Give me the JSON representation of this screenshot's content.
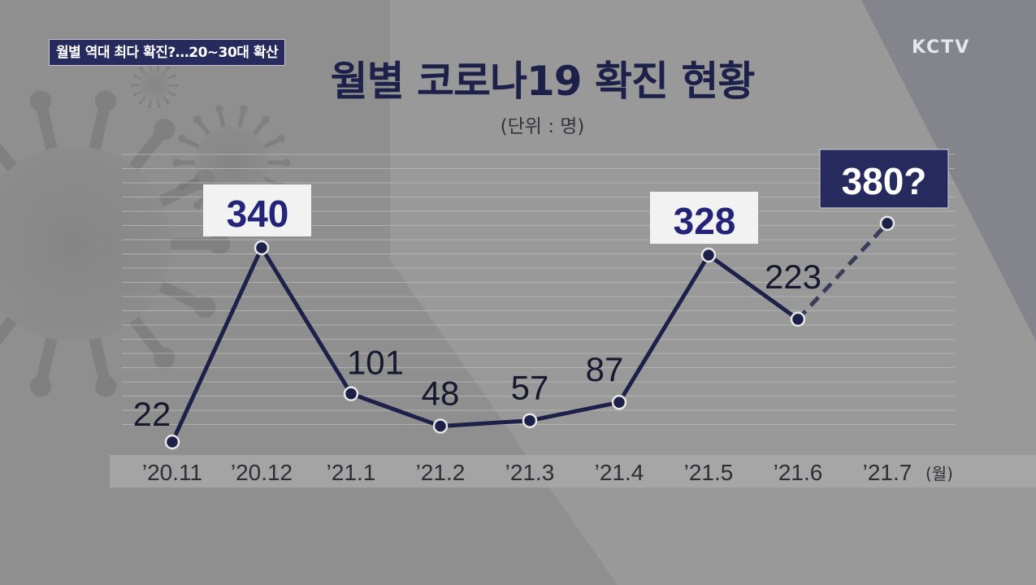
{
  "caption": "월별 역대 최다 확진?…20~30대 확산",
  "logo": "KCTV",
  "colors": {
    "line": "#1d2049",
    "highlight_text": "#23237a",
    "highlight_box": "#f2f2f2",
    "dark_box": "#262a5c",
    "axis_band": "#a8a8a8",
    "background": "#8f8f8f"
  },
  "chart_data": {
    "type": "line",
    "title": "월별 코로나19 확진 현황",
    "subtitle": "(단위 : 명)",
    "categories": [
      "’20.11",
      "’20.12",
      "’21.1",
      "’21.2",
      "’21.3",
      "’21.4",
      "’21.5",
      "’21.6",
      "’21.7"
    ],
    "x_unit_label": "(월)",
    "values": [
      22,
      340,
      101,
      48,
      57,
      87,
      328,
      223,
      380
    ],
    "labels": [
      "22",
      "340",
      "101",
      "48",
      "57",
      "87",
      "328",
      "223",
      "380?"
    ],
    "highlighted": [
      "340",
      "328"
    ],
    "projected": "380?",
    "ylim": [
      0,
      400
    ],
    "grid": true,
    "legend": "none"
  }
}
